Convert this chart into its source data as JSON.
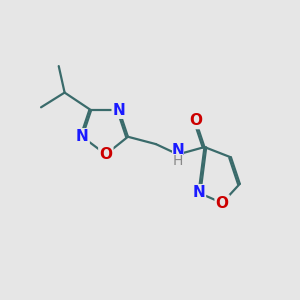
{
  "background_color": "#e6e6e6",
  "bond_color": "#3a6b6b",
  "N_color": "#1a1aff",
  "O_color": "#cc0000",
  "label_fontsize": 11,
  "bond_width": 1.6,
  "figsize": [
    3.0,
    3.0
  ],
  "dpi": 100,
  "xlim": [
    0,
    10
  ],
  "ylim": [
    0,
    10
  ]
}
